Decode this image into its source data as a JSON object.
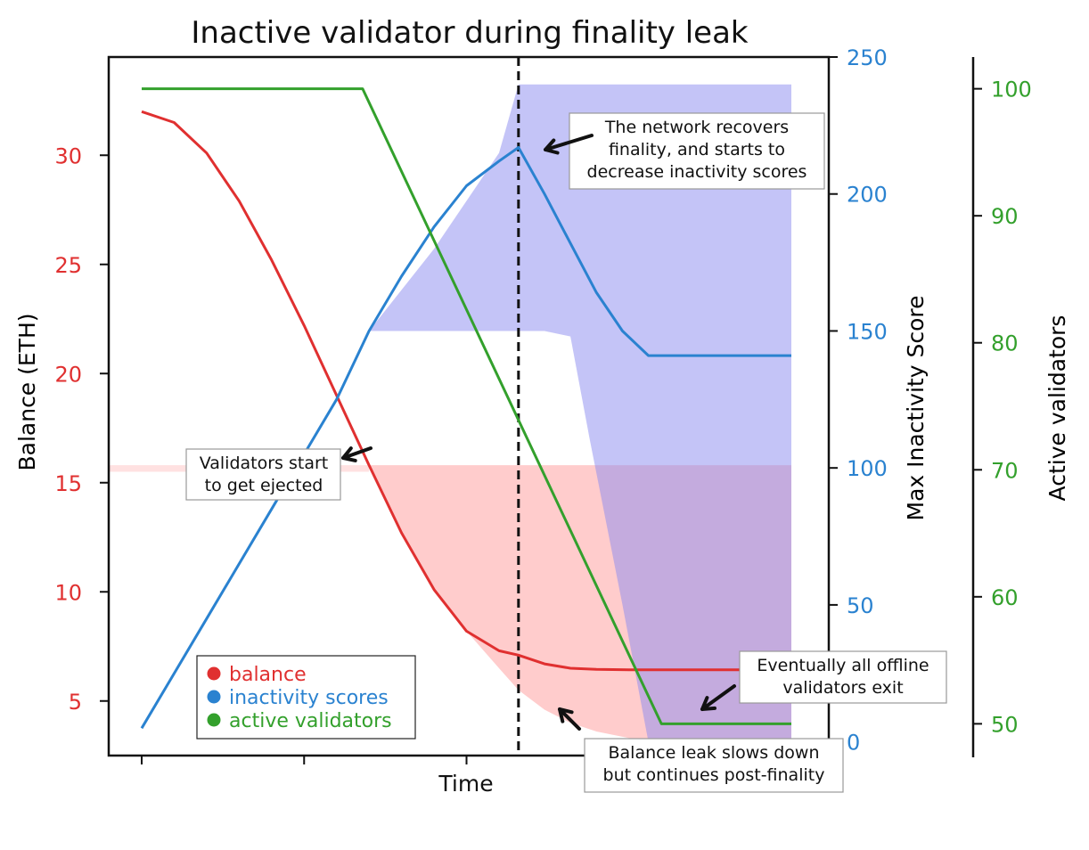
{
  "chart_data": {
    "type": "line",
    "title": "Inactive validator during finality leak",
    "xlabel": "Time",
    "x_ticks": [
      "",
      "",
      "",
      "",
      ""
    ],
    "xlim": [
      0,
      100
    ],
    "axes": {
      "balance": {
        "label": "Balance (ETH)",
        "color": "#e03030",
        "ylim": [
          2.5,
          34.5
        ],
        "ticks": [
          5,
          10,
          15,
          20,
          25,
          30
        ]
      },
      "inactivity": {
        "label": "Max Inactivity Score",
        "color": "#2a82d0",
        "ylim": [
          -5,
          250
        ],
        "ticks": [
          0,
          50,
          100,
          150,
          200,
          250
        ]
      },
      "validators": {
        "label": "Active validators",
        "color": "#33a02c",
        "ylim": [
          47.5,
          102.5
        ],
        "ticks": [
          50,
          60,
          70,
          80,
          90,
          100
        ]
      }
    },
    "vline_x": 58,
    "series": [
      {
        "name": "balance",
        "axis": "balance",
        "color": "#e03030",
        "x": [
          0,
          5,
          10,
          15,
          20,
          25,
          30,
          35,
          40,
          45,
          50,
          55,
          58,
          62,
          66,
          70,
          75,
          80,
          85,
          90,
          95,
          100
        ],
        "y": [
          32,
          31.5,
          30.1,
          27.9,
          25.2,
          22.2,
          19,
          15.8,
          12.7,
          10.1,
          8.2,
          7.3,
          7.1,
          6.7,
          6.5,
          6.45,
          6.43,
          6.43,
          6.43,
          6.43,
          6.43,
          6.43
        ]
      },
      {
        "name": "inactivity scores",
        "axis": "inactivity",
        "color": "#2a82d0",
        "x": [
          0,
          10,
          20,
          30,
          35,
          40,
          45,
          50,
          55,
          58,
          62,
          66,
          70,
          74,
          78,
          100
        ],
        "y": [
          5,
          45,
          85,
          125,
          150,
          170,
          188,
          203,
          212,
          217,
          200,
          182,
          164,
          150,
          141,
          141
        ]
      },
      {
        "name": "active validators",
        "axis": "validators",
        "color": "#33a02c",
        "x": [
          0,
          34,
          80,
          100
        ],
        "y": [
          100,
          100,
          50,
          50
        ]
      }
    ],
    "bands": [
      {
        "axis": "balance",
        "color": "#ff9a9a",
        "x": [
          0,
          5,
          10,
          15,
          20,
          25,
          30,
          35,
          40,
          45,
          50,
          55,
          58,
          62,
          66,
          70,
          75,
          80,
          85,
          90,
          95,
          100
        ],
        "lower": [
          32,
          31.5,
          30.1,
          27.9,
          25.2,
          22.2,
          19,
          15.8,
          12.7,
          10.1,
          8.2,
          6.5,
          5.5,
          4.6,
          4.0,
          3.6,
          3.3,
          3.1,
          3.0,
          3.0,
          3.0,
          3.0
        ],
        "upper": [
          32,
          31.5,
          30.1,
          27.9,
          25.2,
          22.2,
          19,
          15.8,
          15.8,
          15.8,
          15.8,
          15.8,
          15.8,
          15.8,
          15.8,
          15.8,
          15.8,
          15.8,
          15.8,
          15.8,
          15.8,
          15.8
        ]
      },
      {
        "axis": "balance",
        "color": "#ffc4c4",
        "x": [
          -5,
          35
        ],
        "lower": [
          15.5,
          15.5
        ],
        "upper": [
          15.8,
          15.8
        ]
      },
      {
        "axis": "inactivity",
        "color": "#8a8af0",
        "x": [
          35,
          45,
          55,
          58,
          62,
          66,
          69,
          74,
          78,
          82,
          100
        ],
        "lower": [
          150,
          150,
          150,
          150,
          150,
          148,
          110,
          50,
          0,
          0,
          0
        ],
        "upper": [
          150,
          180,
          215,
          240,
          240,
          240,
          240,
          240,
          240,
          240,
          240
        ]
      }
    ],
    "annotations": [
      {
        "lines": [
          "The network recovers",
          "finality, and starts to",
          "decrease inactivity scores"
        ]
      },
      {
        "lines": [
          "Validators start",
          "to get ejected"
        ]
      },
      {
        "lines": [
          "Eventually all offline",
          "validators exit"
        ]
      },
      {
        "lines": [
          "Balance leak slows down",
          "but continues post-finality"
        ]
      }
    ],
    "legend": {
      "position": "lower-left",
      "entries": [
        {
          "label": "balance",
          "color": "#e03030"
        },
        {
          "label": "inactivity scores",
          "color": "#2a82d0"
        },
        {
          "label": "active validators",
          "color": "#33a02c"
        }
      ]
    },
    "grid": false
  }
}
